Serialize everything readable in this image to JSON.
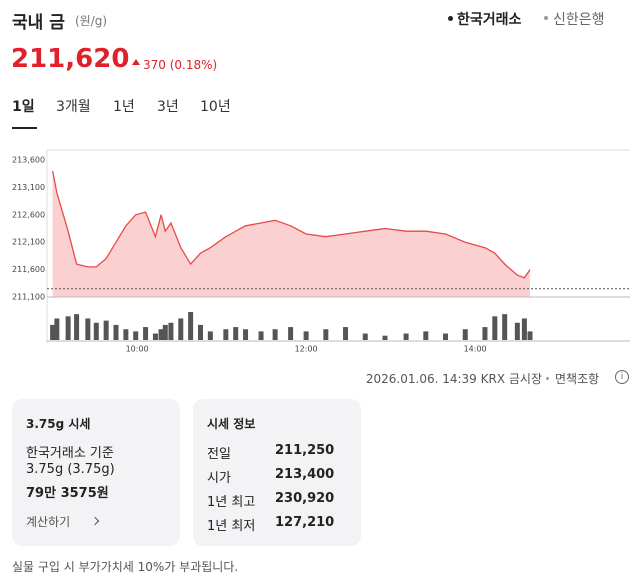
{
  "header": {
    "title": "국내 금",
    "unit": "(원/g)",
    "sources": [
      "한국거래소",
      "신한은행"
    ]
  },
  "price": {
    "value": "211,620",
    "change": "370 (0.18%)"
  },
  "periods": [
    "1일",
    "3개월",
    "1년",
    "3년",
    "10년"
  ],
  "chart_data": {
    "type": "line",
    "color": "#e84a4a",
    "area_color": "#fbd0d0",
    "volume_color": "#555555",
    "x": [
      540,
      543,
      551,
      557,
      565,
      571,
      578,
      585,
      592,
      599,
      606,
      613,
      617,
      620,
      624,
      631,
      638,
      645,
      652,
      663,
      670,
      677,
      688,
      698,
      709,
      720,
      734,
      748,
      762,
      776,
      791,
      805,
      819,
      833,
      847,
      854,
      861,
      870,
      875,
      879
    ],
    "values": [
      213400,
      213000,
      212300,
      211700,
      211650,
      211650,
      211800,
      212100,
      212400,
      212600,
      212650,
      212200,
      212600,
      212300,
      212450,
      212000,
      211700,
      211900,
      212000,
      212200,
      212300,
      212400,
      212450,
      212500,
      212400,
      212250,
      212200,
      212250,
      212300,
      212350,
      212300,
      212300,
      212250,
      212100,
      212000,
      211900,
      211700,
      211500,
      211450,
      211600
    ],
    "volume": [
      14,
      20,
      22,
      24,
      20,
      16,
      18,
      14,
      10,
      8,
      12,
      6,
      10,
      14,
      16,
      20,
      26,
      14,
      8,
      10,
      12,
      10,
      8,
      10,
      12,
      8,
      10,
      12,
      6,
      4,
      6,
      8,
      6,
      10,
      12,
      22,
      24,
      16,
      20,
      8
    ],
    "baseline": 211250,
    "xlim": [
      536,
      950
    ],
    "ylim": [
      211100,
      213600
    ],
    "xticks": [
      {
        "value": 600,
        "label": "10:00"
      },
      {
        "value": 720,
        "label": "12:00"
      },
      {
        "value": 840,
        "label": "14:00"
      }
    ],
    "yticks": [
      {
        "value": 213600,
        "label": "213,600"
      },
      {
        "value": 213100,
        "label": "213,100"
      },
      {
        "value": 212600,
        "label": "212,600"
      },
      {
        "value": 212100,
        "label": "212,100"
      },
      {
        "value": 211600,
        "label": "211,600"
      },
      {
        "value": 211100,
        "label": "211,100"
      }
    ]
  },
  "footer": {
    "timestamp": "2026.01.06. 14:39 KRX 금시장",
    "disclaimer": "면책조항"
  },
  "cards": [
    {
      "title": "3.75g 시세",
      "basis": "한국거래소 기준",
      "weight": "3.75g (3.75g)",
      "amount": "79만 3575원",
      "action": "계산하기"
    },
    {
      "title": "시세 정보",
      "rows": [
        [
          "전일",
          "211,250"
        ],
        [
          "시가",
          "213,400"
        ],
        [
          "1년 최고",
          "230,920"
        ],
        [
          "1년 최저",
          "127,210"
        ]
      ]
    }
  ],
  "note": "실물 구입 시 부가가치세 10%가 부과됩니다."
}
